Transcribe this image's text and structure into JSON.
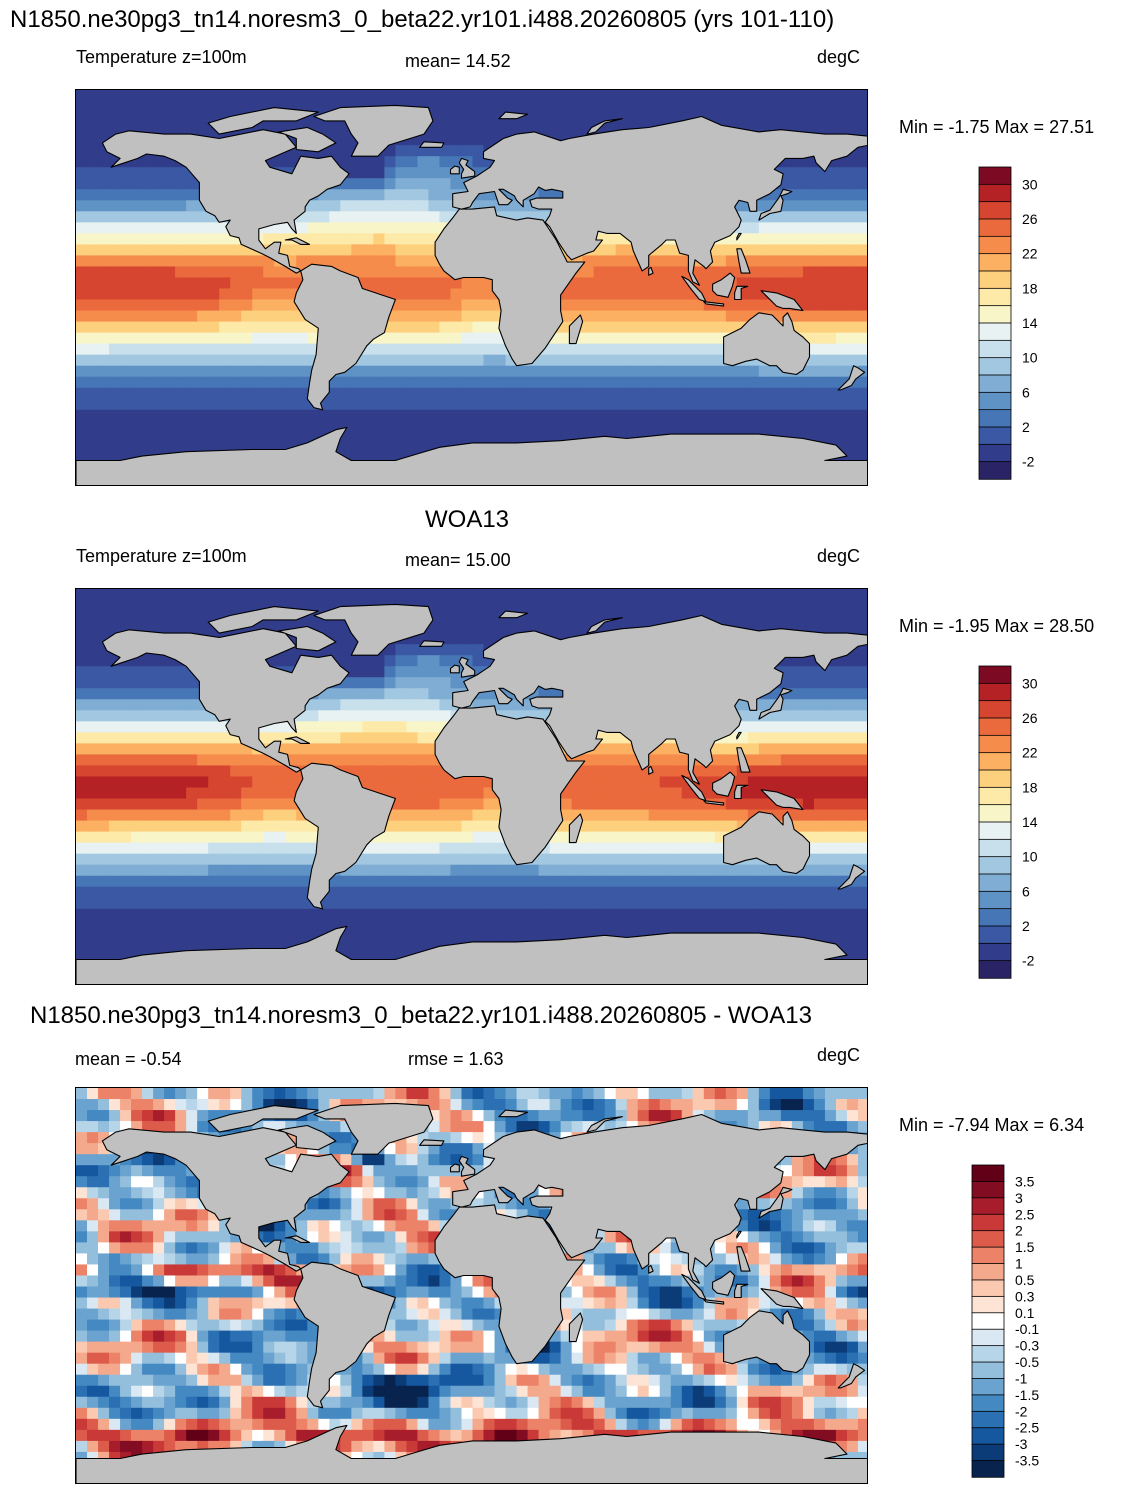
{
  "panels": [
    {
      "title": "N1850.ne30pg3_tn14.noresm3_0_beta22.yr101.i488.20260805 (yrs 101-110)",
      "left_label": "Temperature z=100m",
      "center_label": "mean=  14.52",
      "units": "degC",
      "minmax": "Min =  -1.75 Max =  27.51",
      "colorbar_ticks": [
        "30",
        "26",
        "22",
        "18",
        "14",
        "10",
        "6",
        "2",
        "-2"
      ],
      "field": "model"
    },
    {
      "title": "WOA13",
      "left_label": "Temperature z=100m",
      "center_label": "mean=  15.00",
      "units": "degC",
      "minmax": "Min =  -1.95 Max =  28.50",
      "colorbar_ticks": [
        "30",
        "26",
        "22",
        "18",
        "14",
        "10",
        "6",
        "2",
        "-2"
      ],
      "field": "obs"
    },
    {
      "title": "N1850.ne30pg3_tn14.noresm3_0_beta22.yr101.i488.20260805 - WOA13",
      "left_label": "mean =  -0.54",
      "center_label": "rmse =    1.63",
      "units": "degC",
      "minmax": "Min =  -7.94 Max =    6.34",
      "colorbar_ticks": [
        "3.5",
        "3",
        "2.5",
        "2",
        "1.5",
        "1",
        "0.5",
        "0.3",
        "0.1",
        "-0.1",
        "-0.3",
        "-0.5",
        "-1",
        "-1.5",
        "-2",
        "-2.5",
        "-3",
        "-3.5"
      ],
      "field": "diff"
    }
  ],
  "chart_data": [
    {
      "type": "heatmap",
      "title": "N1850.ne30pg3_tn14.noresm3_0_beta22.yr101.i488.20260805 (yrs 101-110)",
      "variable": "Temperature z=100m",
      "units": "degC",
      "mean": 14.52,
      "min": -1.75,
      "max": 27.51,
      "contour_levels": [
        -2,
        0,
        2,
        4,
        6,
        8,
        10,
        12,
        14,
        16,
        18,
        20,
        22,
        24,
        26,
        28,
        30
      ],
      "colors": [
        "#2a2466",
        "#313c8a",
        "#3a58a3",
        "#4776b6",
        "#5f93c6",
        "#7fadd3",
        "#a2c7e0",
        "#c8e0ec",
        "#e8f2f2",
        "#f8f6c8",
        "#fde9a8",
        "#fdd07e",
        "#fbb062",
        "#f58c4c",
        "#ea6a3d",
        "#d6452f",
        "#b42226",
        "#7d0a23"
      ]
    },
    {
      "type": "heatmap",
      "title": "WOA13",
      "variable": "Temperature z=100m",
      "units": "degC",
      "mean": 15.0,
      "min": -1.95,
      "max": 28.5,
      "contour_levels": [
        -2,
        0,
        2,
        4,
        6,
        8,
        10,
        12,
        14,
        16,
        18,
        20,
        22,
        24,
        26,
        28,
        30
      ],
      "colors": [
        "#2a2466",
        "#313c8a",
        "#3a58a3",
        "#4776b6",
        "#5f93c6",
        "#7fadd3",
        "#a2c7e0",
        "#c8e0ec",
        "#e8f2f2",
        "#f8f6c8",
        "#fde9a8",
        "#fdd07e",
        "#fbb062",
        "#f58c4c",
        "#ea6a3d",
        "#d6452f",
        "#b42226",
        "#7d0a23"
      ]
    },
    {
      "type": "heatmap",
      "title": "N1850.ne30pg3_tn14.noresm3_0_beta22.yr101.i488.20260805 - WOA13",
      "units": "degC",
      "mean": -0.54,
      "rmse": 1.63,
      "min": -7.94,
      "max": 6.34,
      "contour_levels": [
        -3.5,
        -3,
        -2.5,
        -2,
        -1.5,
        -1,
        -0.5,
        -0.3,
        -0.1,
        0.1,
        0.3,
        0.5,
        1,
        1.5,
        2,
        2.5,
        3,
        3.5
      ],
      "colors": [
        "#08234d",
        "#0c3c78",
        "#1658a0",
        "#2a70b3",
        "#4589c2",
        "#6aa3cf",
        "#93bfdc",
        "#b7d5e8",
        "#d9e8f2",
        "#ffffff",
        "#fde4d5",
        "#fbc9b0",
        "#f5a98c",
        "#ec8369",
        "#dd5b4b",
        "#c83937",
        "#a81d2c",
        "#820d22",
        "#620018"
      ]
    }
  ]
}
